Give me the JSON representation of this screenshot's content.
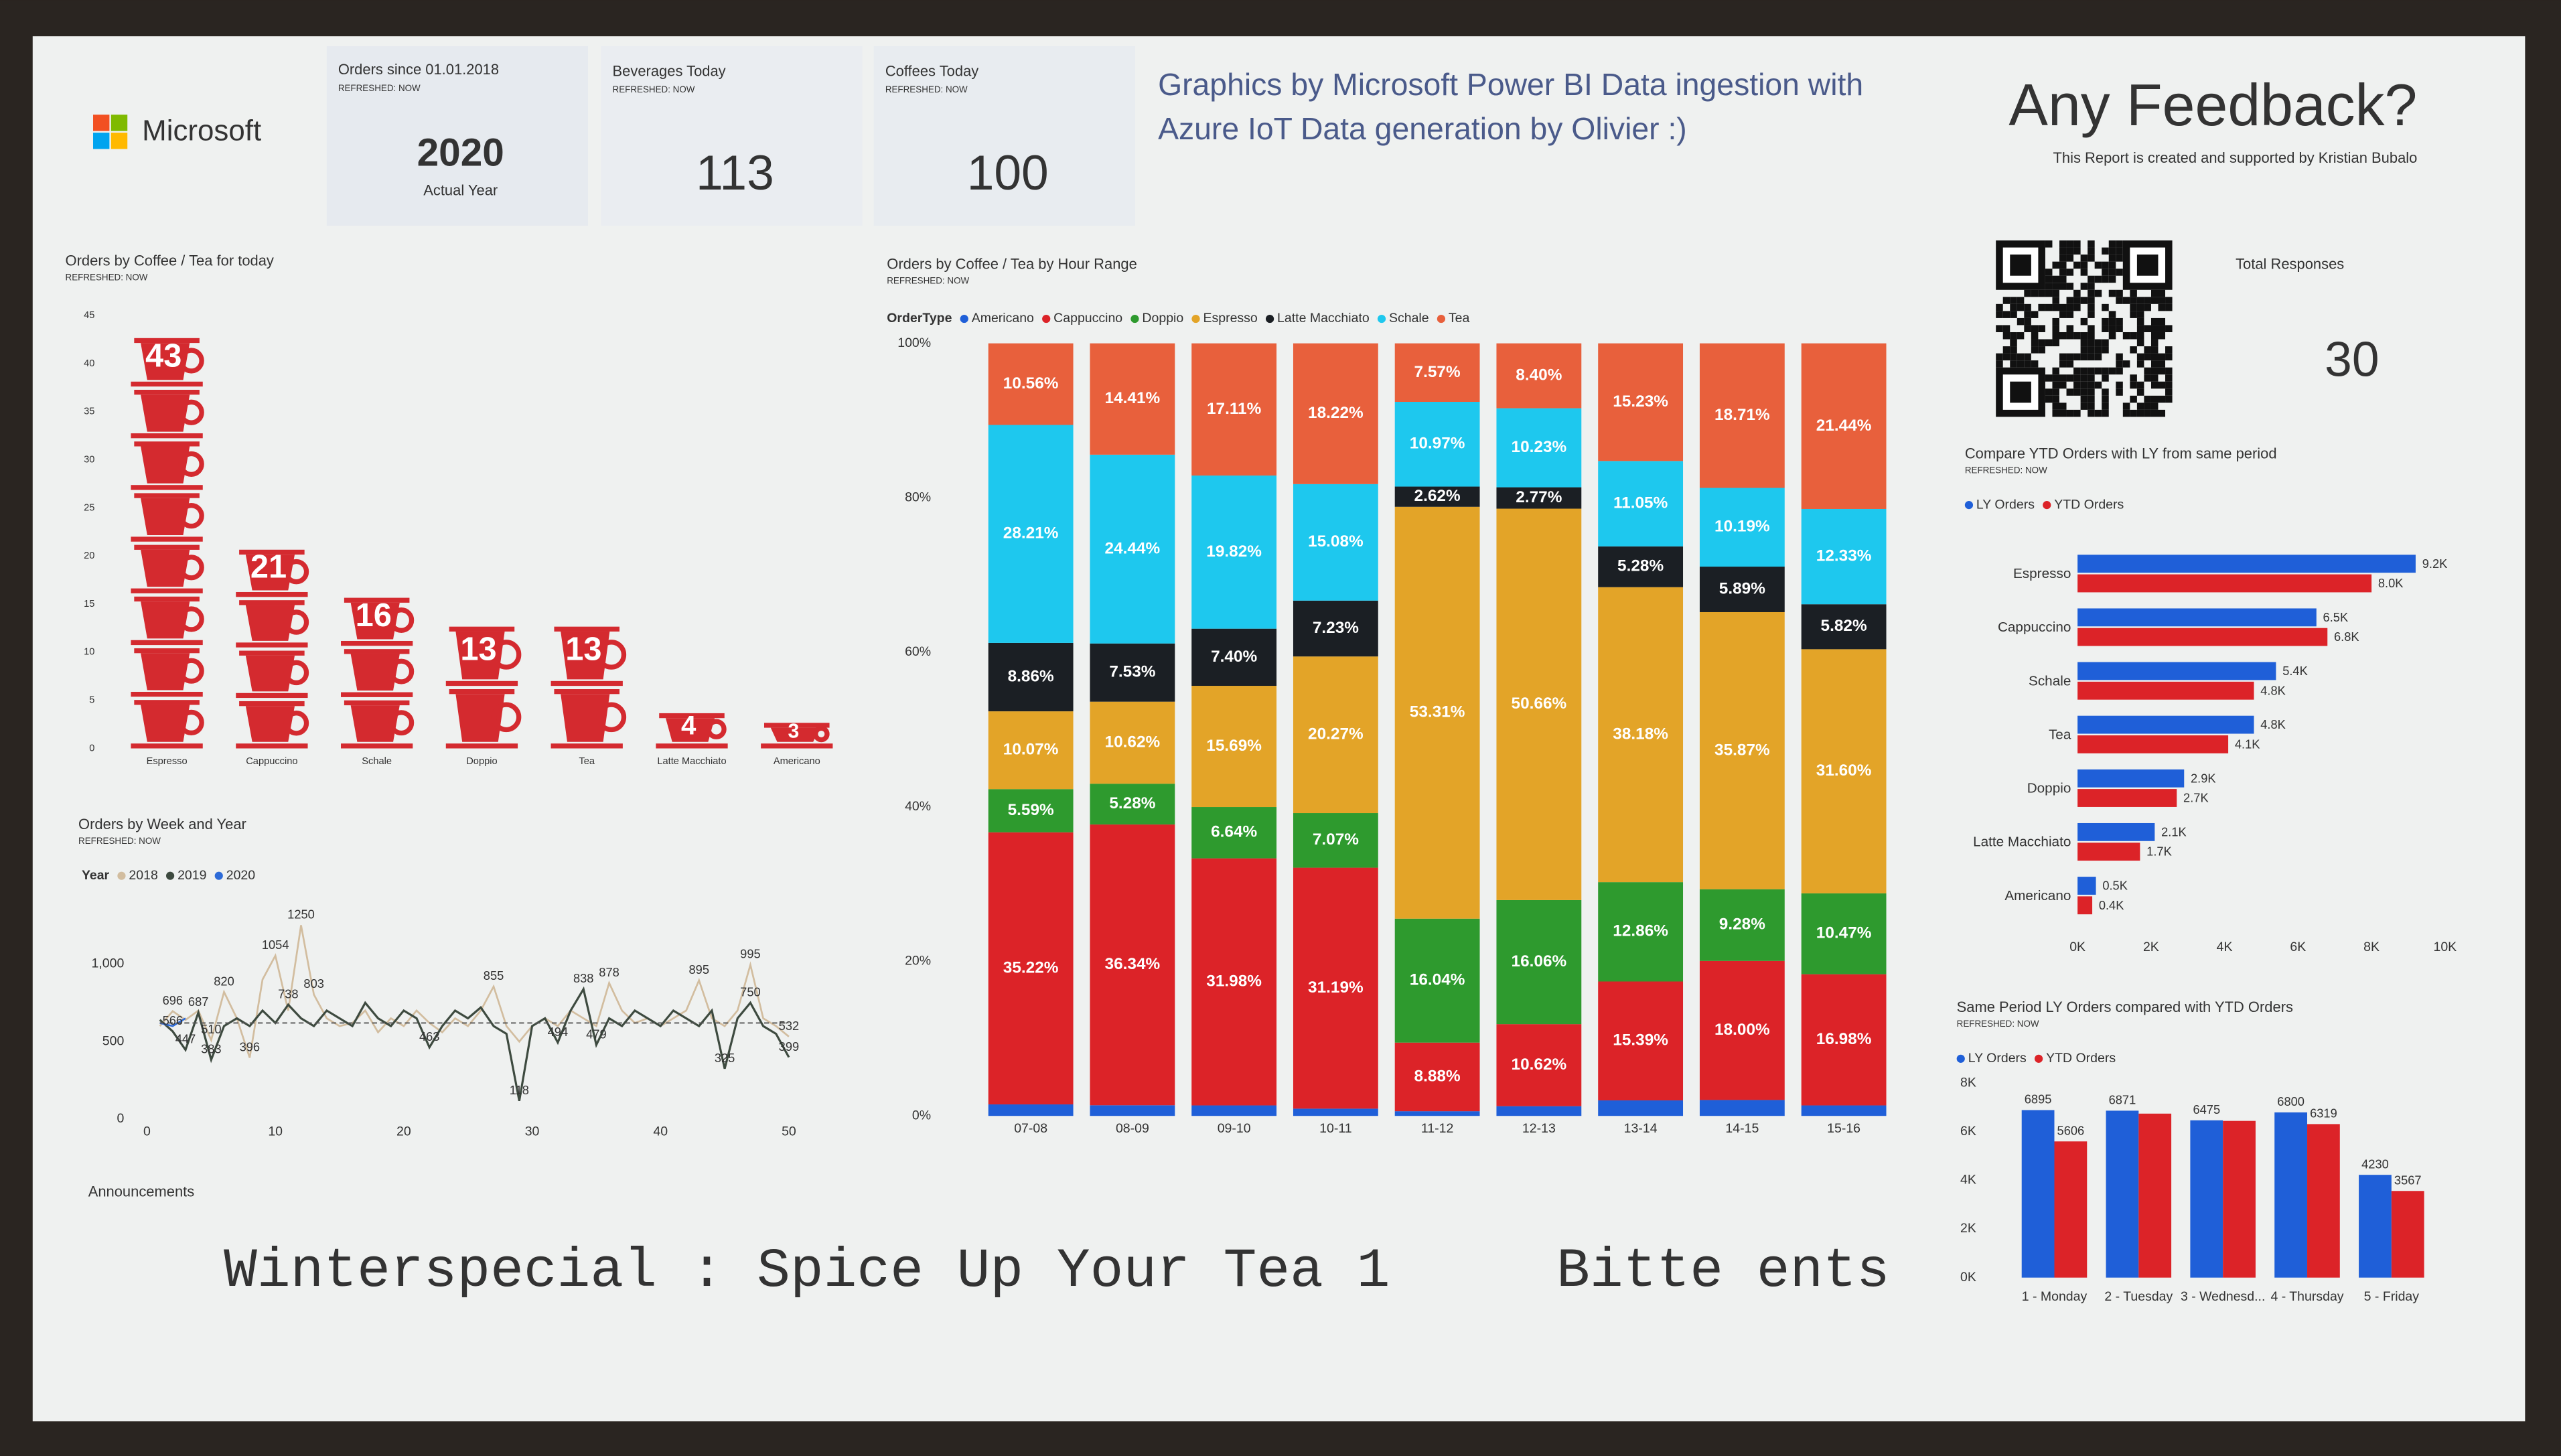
{
  "header": {
    "logo": "Microsoft",
    "credits": [
      "Graphics by Microsoft Power BI Data ingestion with",
      "Azure IoT Data generation by Olivier :)"
    ],
    "feedback_title": "Any Feedback?",
    "feedback_note": "This Report is created and supported by Kristian Bubalo"
  },
  "kpis": [
    {
      "title": "Orders since 01.01.2018",
      "subtitle": "REFRESHED: NOW",
      "value": 2020,
      "caption": "Actual Year"
    },
    {
      "title": "Beverages Today",
      "subtitle": "REFRESHED: NOW",
      "value": 113
    },
    {
      "title": "Coffees Today",
      "subtitle": "REFRESHED: NOW",
      "value": 100
    }
  ],
  "responses": {
    "title": "Total Responses",
    "value": 30
  },
  "announcements": {
    "title": "Announcements",
    "text": "Winterspecial : Spice Up Your Tea 1     Bitte ents"
  },
  "chart_data": [
    {
      "type": "cups",
      "title": "Orders by Coffee / Tea for today",
      "subtitle": "REFRESHED: NOW",
      "categories": [
        "Espresso",
        "Cappuccino",
        "Schale",
        "Doppio",
        "Tea",
        "Latte Macchiato",
        "Americano"
      ],
      "values": [
        43,
        21,
        16,
        13,
        13,
        4,
        3
      ],
      "color": "#d42a2f",
      "ylim": [
        0,
        45
      ],
      "yticks": [
        0,
        5,
        10,
        15,
        20,
        25,
        30,
        35,
        40,
        45
      ]
    },
    {
      "type": "line",
      "title": "Orders by Week and Year",
      "subtitle": "REFRESHED: NOW",
      "legend_title": "Year",
      "x": [
        1,
        2,
        3,
        4,
        5,
        6,
        7,
        8,
        9,
        10,
        11,
        12,
        13,
        14,
        15,
        16,
        17,
        18,
        19,
        20,
        21,
        22,
        23,
        24,
        25,
        26,
        27,
        28,
        29,
        30,
        31,
        32,
        33,
        34,
        35,
        36,
        37,
        38,
        39,
        40,
        41,
        42,
        43,
        44,
        45,
        46,
        47,
        48,
        49,
        50
      ],
      "series": [
        {
          "name": "2018",
          "color": "#d2bd9f",
          "values": [
            600,
            696,
            640,
            700,
            510,
            820,
            650,
            396,
            900,
            1054,
            700,
            1250,
            803,
            650,
            600,
            620,
            700,
            560,
            650,
            600,
            700,
            620,
            560,
            650,
            600,
            700,
            855,
            600,
            500,
            600,
            650,
            600,
            700,
            650,
            600,
            878,
            700,
            620,
            650,
            600,
            650,
            700,
            895,
            650,
            600,
            700,
            995,
            650,
            600,
            532
          ]
        },
        {
          "name": "2019",
          "color": "#3d4a3f",
          "values": [
            640,
            566,
            447,
            687,
            383,
            600,
            650,
            600,
            700,
            620,
            738,
            650,
            600,
            700,
            650,
            600,
            750,
            650,
            600,
            700,
            650,
            463,
            600,
            700,
            650,
            720,
            600,
            550,
            118,
            600,
            650,
            494,
            700,
            838,
            479,
            650,
            600,
            700,
            650,
            600,
            700,
            650,
            600,
            700,
            325,
            650,
            750,
            600,
            550,
            399
          ]
        },
        {
          "name": "2020",
          "color": "#2d6bd8",
          "x": [
            1,
            2,
            3
          ],
          "values": [
            620,
            600,
            650
          ]
        }
      ],
      "average": 620,
      "data_labels": [
        {
          "x": 12,
          "value": 1250
        },
        {
          "x": 10,
          "value": 1054
        },
        {
          "x": 6,
          "value": 820
        },
        {
          "x": 13,
          "value": 803
        },
        {
          "x": 4,
          "value": 687
        },
        {
          "x": 2,
          "value": 696
        },
        {
          "x": 2,
          "value": 566
        },
        {
          "x": 3,
          "value": 447
        },
        {
          "x": 5,
          "value": 510
        },
        {
          "x": 5,
          "value": 383
        },
        {
          "x": 8,
          "value": 396
        },
        {
          "x": 11,
          "value": 738
        },
        {
          "x": 22,
          "value": 463
        },
        {
          "x": 27,
          "value": 855
        },
        {
          "x": 29,
          "value": 118
        },
        {
          "x": 32,
          "value": 494
        },
        {
          "x": 34,
          "value": 838
        },
        {
          "x": 35,
          "value": 479
        },
        {
          "x": 36,
          "value": 878
        },
        {
          "x": 43,
          "value": 895
        },
        {
          "x": 47,
          "value": 995
        },
        {
          "x": 47,
          "value": 750
        },
        {
          "x": 45,
          "value": 325
        },
        {
          "x": 50,
          "value": 532
        },
        {
          "x": 50,
          "value": 399
        }
      ],
      "xlim": [
        0,
        50
      ],
      "xticks": [
        0,
        10,
        20,
        30,
        40,
        50
      ],
      "ylim": [
        0,
        1300
      ],
      "yticks": [
        0,
        500,
        {
          "value": 1000,
          "label": "1,000"
        }
      ]
    },
    {
      "type": "stacked_bar",
      "title": "Orders by Coffee / Tea by Hour Range",
      "subtitle": "REFRESHED: NOW",
      "legend_title": "OrderType",
      "categories": [
        "07-08",
        "08-09",
        "09-10",
        "10-11",
        "11-12",
        "12-13",
        "13-14",
        "14-15",
        "15-16"
      ],
      "series": [
        {
          "name": "Americano",
          "color": "#1f5fd8",
          "values": [
            1.49,
            1.38,
            1.36,
            0.94,
            0.61,
            1.26,
            2.01,
            2.06,
            1.36
          ]
        },
        {
          "name": "Cappuccino",
          "color": "#dc2328",
          "values": [
            35.22,
            36.34,
            31.98,
            31.19,
            8.88,
            10.62,
            15.39,
            18.0,
            16.98
          ],
          "value_labels": [
            "35.22%",
            "36.34%",
            "31.98%",
            "31.19%",
            "8.88%",
            "10.62%",
            "15.39%",
            "18.00%",
            "16.98%"
          ]
        },
        {
          "name": "Doppio",
          "color": "#2e9a2e",
          "values": [
            5.59,
            5.28,
            6.64,
            7.07,
            16.04,
            16.06,
            12.86,
            9.28,
            10.47
          ],
          "value_labels": [
            "5.59%",
            "5.28%",
            "6.64%",
            "7.07%",
            "16.04%",
            "16.06%",
            "12.86%",
            "9.28%",
            "10.47%"
          ]
        },
        {
          "name": "Espresso",
          "color": "#e3a428",
          "values": [
            10.07,
            10.62,
            15.69,
            20.27,
            53.31,
            50.66,
            38.18,
            35.87,
            31.6
          ],
          "value_labels": [
            "10.07%",
            "10.62%",
            "15.69%",
            "20.27%",
            "53.31%",
            "50.66%",
            "38.18%",
            "35.87%",
            "31.60%"
          ]
        },
        {
          "name": "Latte Macchiato",
          "color": "#1b1f24",
          "values": [
            8.86,
            7.53,
            7.4,
            7.23,
            2.62,
            2.77,
            5.28,
            5.89,
            5.82
          ],
          "value_labels": [
            "8.86%",
            "7.53%",
            "7.40%",
            "7.23%",
            "2.62%",
            "2.77%",
            "5.28%",
            "5.89%",
            "5.82%"
          ]
        },
        {
          "name": "Schale",
          "color": "#1ec8ee",
          "values": [
            28.21,
            24.44,
            19.82,
            15.08,
            10.97,
            10.23,
            11.05,
            10.19,
            12.33
          ],
          "value_labels": [
            "28.21%",
            "24.44%",
            "19.82%",
            "15.08%",
            "10.97%",
            "10.23%",
            "11.05%",
            "10.19%",
            "12.33%"
          ]
        },
        {
          "name": "Tea",
          "color": "#e8603c",
          "values": [
            10.56,
            14.41,
            17.11,
            18.22,
            7.57,
            8.4,
            15.23,
            18.71,
            21.44
          ],
          "value_labels": [
            "10.56%",
            "14.41%",
            "17.11%",
            "18.22%",
            "7.57%",
            "8.40%",
            "15.23%",
            "18.71%",
            "21.44%"
          ]
        }
      ],
      "ylim": [
        0,
        100
      ],
      "yticks": [
        {
          "value": 0,
          "label": "0%"
        },
        {
          "value": 20,
          "label": "20%"
        },
        {
          "value": 40,
          "label": "40%"
        },
        {
          "value": 60,
          "label": "60%"
        },
        {
          "value": 80,
          "label": "80%"
        },
        {
          "value": 100,
          "label": "100%"
        }
      ]
    },
    {
      "type": "hbar",
      "title": "Compare YTD Orders with LY from same period",
      "subtitle": "REFRESHED: NOW",
      "categories": [
        "Espresso",
        "Cappuccino",
        "Schale",
        "Tea",
        "Doppio",
        "Latte Macchiato",
        "Americano"
      ],
      "series": [
        {
          "name": "LY Orders",
          "color": "#1f5fd8",
          "values": [
            9200,
            6500,
            5400,
            4800,
            2900,
            2100,
            500
          ],
          "value_labels": [
            "9.2K",
            "6.5K",
            "5.4K",
            "4.8K",
            "2.9K",
            "2.1K",
            "0.5K"
          ]
        },
        {
          "name": "YTD Orders",
          "color": "#dc2328",
          "values": [
            8000,
            6800,
            4800,
            4100,
            2700,
            1700,
            400
          ],
          "value_labels": [
            "8.0K",
            "6.8K",
            "4.8K",
            "4.1K",
            "2.7K",
            "1.7K",
            "0.4K"
          ]
        }
      ],
      "xlim": [
        0,
        10000
      ],
      "xticks": [
        {
          "value": 0,
          "label": "0K"
        },
        {
          "value": 2000,
          "label": "2K"
        },
        {
          "value": 4000,
          "label": "4K"
        },
        {
          "value": 6000,
          "label": "6K"
        },
        {
          "value": 8000,
          "label": "8K"
        },
        {
          "value": 10000,
          "label": "10K"
        }
      ]
    },
    {
      "type": "vbar",
      "title": "Same Period LY Orders compared with YTD Orders",
      "subtitle": "REFRESHED: NOW",
      "categories": [
        "1 - Monday",
        "2 - Tuesday",
        "3 - Wednesd...",
        "4 - Thursday",
        "5 - Friday"
      ],
      "series": [
        {
          "name": "LY Orders",
          "color": "#1f5fd8",
          "values": [
            6895,
            6871,
            6475,
            6800,
            4230
          ],
          "value_labels": [
            "6895",
            "6871",
            "6475",
            "6800",
            "4230"
          ]
        },
        {
          "name": "YTD Orders",
          "color": "#dc2328",
          "values": [
            5606,
            6750,
            6450,
            6319,
            3567
          ],
          "value_labels": [
            "5606",
            null,
            null,
            "6319",
            "3567"
          ]
        }
      ],
      "ylim": [
        0,
        8000
      ],
      "yticks": [
        {
          "value": 0,
          "label": "0K"
        },
        {
          "value": 2000,
          "label": "2K"
        },
        {
          "value": 4000,
          "label": "4K"
        },
        {
          "value": 6000,
          "label": "6K"
        },
        {
          "value": 8000,
          "label": "8K"
        }
      ]
    }
  ]
}
